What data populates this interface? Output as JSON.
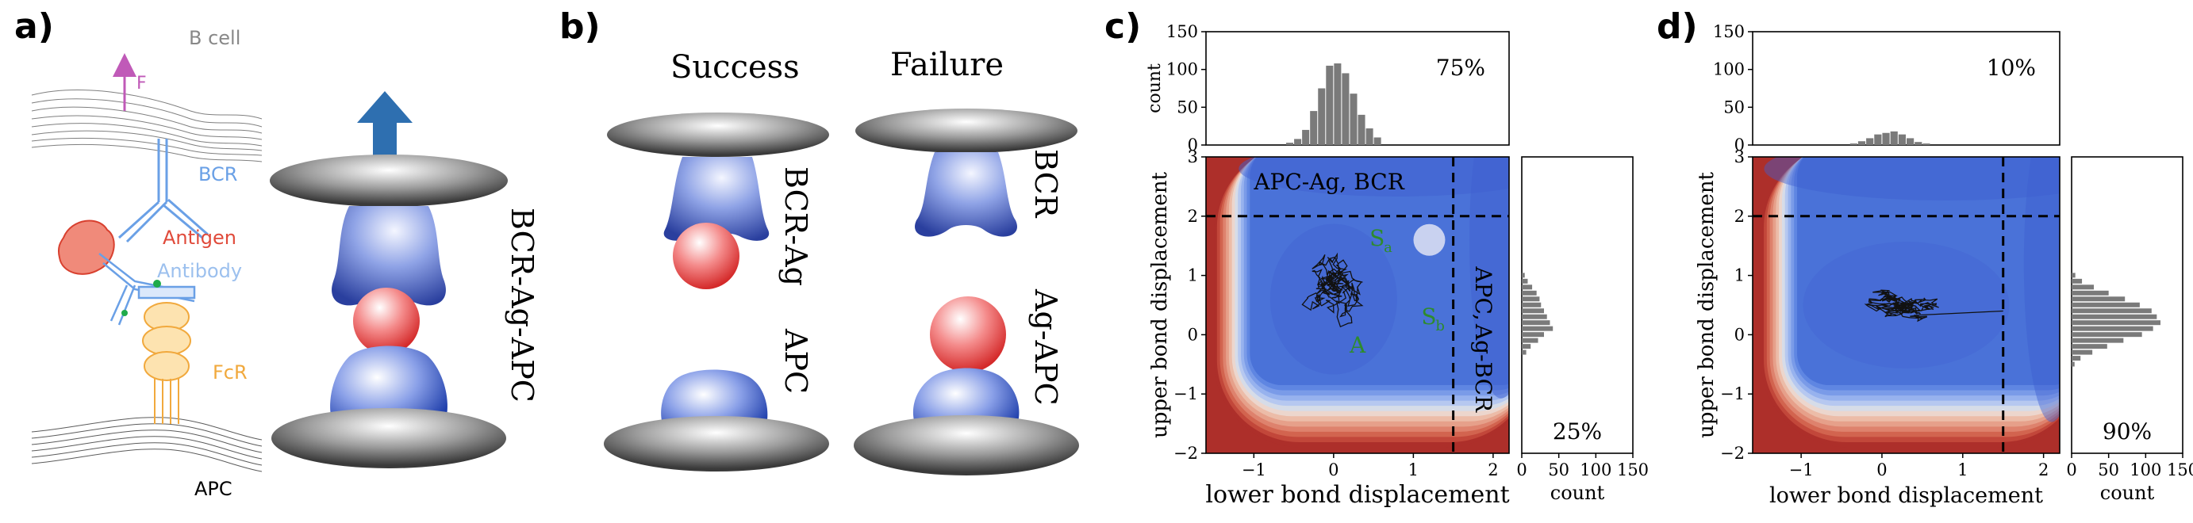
{
  "panel_labels": {
    "a": "a)",
    "b": "b)",
    "c": "c)",
    "d": "d)"
  },
  "panel_a": {
    "F": "F",
    "b_cell": "B cell",
    "bcr": "BCR",
    "antigen": "Antigen",
    "antibody": "Antibody",
    "fcr": "FcR",
    "apc": "APC",
    "complex": "BCR-Ag-APC",
    "colors": {
      "F": "#c05ab8",
      "bcr": "#6aa0e6",
      "antigen": "#e04a3a",
      "antibody": "#9cc0ee",
      "fcr": "#f1a93d",
      "arrow": "#2e6fb0"
    }
  },
  "panel_b": {
    "success": "Success",
    "failure": "Failure",
    "bcr_ag": "BCR-Ag",
    "apc": "APC",
    "bcr": "BCR",
    "ag_apc": "Ag-APC"
  },
  "panel_c": {
    "main": {
      "xlabel": "lower bond displacement",
      "ylabel": "upper bond displacement",
      "xlim": [
        -1.6,
        2.2
      ],
      "ylim": [
        -2,
        3
      ],
      "xticks": [
        "−1",
        "0",
        "1",
        "2"
      ],
      "yticks": [
        "−2",
        "−1",
        "0",
        "1",
        "2",
        "3"
      ],
      "region_top": "APC-Ag,   BCR",
      "region_right_1": "APC,",
      "region_right_2": "Ag-BCR",
      "label_A": "A",
      "label_Sa": "S",
      "label_Sa_sub": "a",
      "label_Sb": "S",
      "label_Sb_sub": "b",
      "dashed_x": 1.5,
      "dashed_y": 2.0,
      "label_color": "#2e8b2e"
    },
    "top_hist": {
      "ylabel": "count",
      "yticks": [
        "0",
        "50",
        "100",
        "150"
      ],
      "ylim": [
        0,
        150
      ],
      "percent": "75%",
      "bin_centers": [
        -0.55,
        -0.45,
        -0.35,
        -0.25,
        -0.15,
        -0.05,
        0.05,
        0.15,
        0.25,
        0.35,
        0.45,
        0.55
      ],
      "counts": [
        3,
        8,
        20,
        45,
        75,
        105,
        108,
        95,
        68,
        40,
        22,
        10
      ]
    },
    "right_hist": {
      "xlabel": "count",
      "xticks": [
        "0",
        "50",
        "100",
        "150"
      ],
      "xlim": [
        0,
        150
      ],
      "percent": "25%",
      "bin_centers": [
        1.0,
        0.9,
        0.8,
        0.7,
        0.6,
        0.5,
        0.4,
        0.3,
        0.2,
        0.1,
        0.0,
        -0.1,
        -0.2,
        -0.3
      ],
      "counts": [
        4,
        8,
        14,
        20,
        24,
        26,
        30,
        34,
        38,
        42,
        30,
        22,
        12,
        6
      ]
    }
  },
  "panel_d": {
    "main": {
      "xlabel": "lower bond displacement",
      "ylabel": "upper bond displacement",
      "xlim": [
        -1.6,
        2.2
      ],
      "ylim": [
        -2,
        3
      ],
      "xticks": [
        "−1",
        "0",
        "1",
        "2"
      ],
      "yticks": [
        "−2",
        "−1",
        "0",
        "1",
        "2",
        "3"
      ],
      "dashed_x": 1.5,
      "dashed_y": 2.0
    },
    "top_hist": {
      "yticks": [
        "0",
        "50",
        "100",
        "150"
      ],
      "ylim": [
        0,
        150
      ],
      "percent": "10%",
      "bin_centers": [
        -0.35,
        -0.25,
        -0.15,
        -0.05,
        0.05,
        0.15,
        0.25,
        0.35,
        0.45,
        0.55
      ],
      "counts": [
        2,
        5,
        9,
        14,
        16,
        18,
        14,
        9,
        4,
        2
      ]
    },
    "right_hist": {
      "xlabel": "count",
      "xticks": [
        "0",
        "50",
        "100",
        "150"
      ],
      "xlim": [
        0,
        150
      ],
      "percent": "90%",
      "bin_centers": [
        1.0,
        0.9,
        0.8,
        0.7,
        0.6,
        0.5,
        0.4,
        0.3,
        0.2,
        0.1,
        0.0,
        -0.1,
        -0.2,
        -0.3,
        -0.4,
        -0.5
      ],
      "counts": [
        5,
        14,
        30,
        50,
        72,
        92,
        108,
        115,
        120,
        110,
        95,
        70,
        48,
        28,
        12,
        4
      ]
    }
  }
}
